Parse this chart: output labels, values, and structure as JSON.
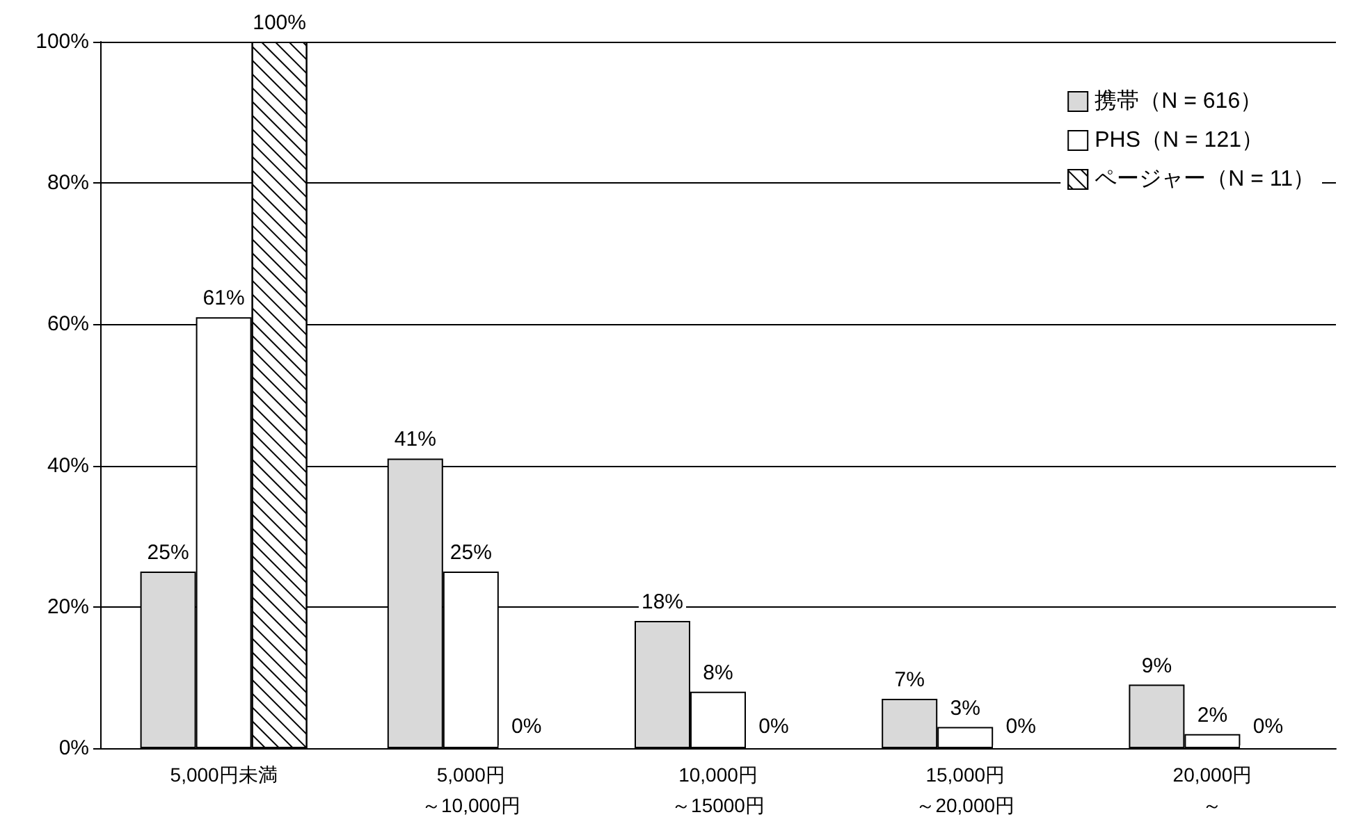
{
  "chart_data": {
    "type": "bar",
    "categories": [
      "5,000円未満",
      "5,000円～10,000円",
      "10,000円～15000円",
      "15,000円～20,000円",
      "20,000円～"
    ],
    "series": [
      {
        "name": "携帯（N = 616）",
        "color": "#d9d9d9",
        "values": [
          25,
          41,
          18,
          7,
          9
        ],
        "value_labels": [
          "25%",
          "41%",
          "18%",
          "7%",
          "9%"
        ]
      },
      {
        "name": "PHS（N = 121）",
        "color": "#ffffff",
        "values": [
          61,
          25,
          8,
          3,
          2
        ],
        "value_labels": [
          "61%",
          "25%",
          "8%",
          "3%",
          "2%"
        ]
      },
      {
        "name": "ページャー（N = 11）",
        "color": "#ffffff",
        "values": [
          100,
          0,
          0,
          0,
          0
        ],
        "value_labels": [
          "100%",
          "0%",
          "0%",
          "0%",
          "0%"
        ]
      }
    ],
    "ylim": [
      0,
      100
    ],
    "yticks": [
      {
        "value": 0,
        "label": "0%"
      },
      {
        "value": 20,
        "label": "20%"
      },
      {
        "value": 40,
        "label": "40%"
      },
      {
        "value": 60,
        "label": "60%"
      },
      {
        "value": 80,
        "label": "80%"
      },
      {
        "value": 100,
        "label": "100%"
      }
    ],
    "grid": "y",
    "legend": "top right"
  }
}
